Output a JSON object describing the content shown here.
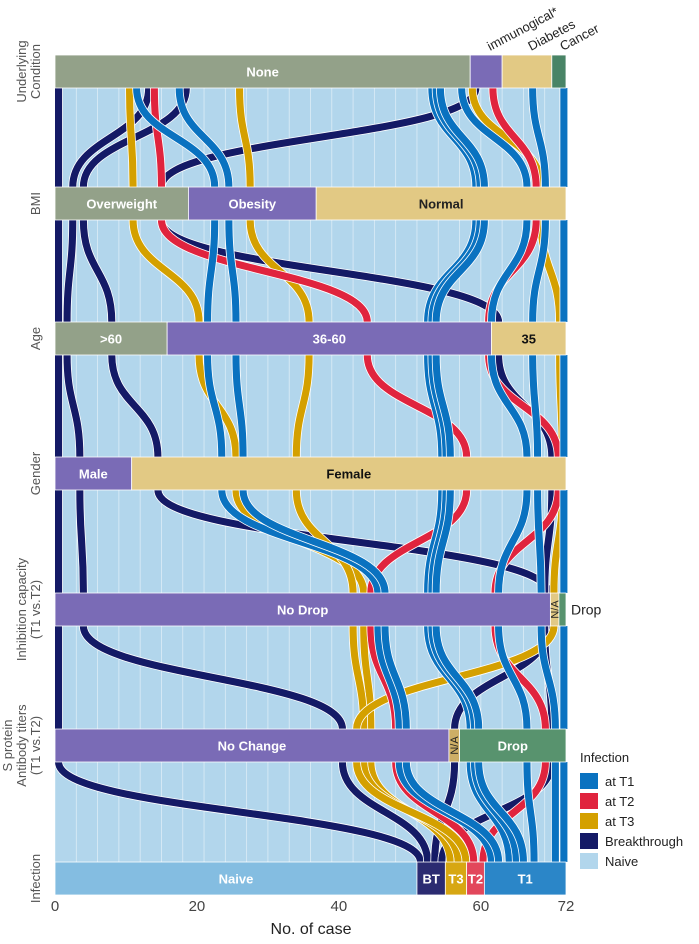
{
  "chart_data": {
    "type": "alluvial",
    "title": "",
    "xlabel": "No. of case",
    "xlim": [
      0,
      72
    ],
    "x_ticks": [
      0,
      20,
      40,
      60,
      72
    ],
    "total_cases": 72,
    "axes": [
      {
        "name": "Underlying Condition",
        "label_lines": [
          "Underlying",
          "Condition"
        ],
        "nodes": [
          {
            "label": "None",
            "start": 0,
            "end": 58.5,
            "color": "#8a9a80",
            "text_color": "#ffffff",
            "label_outside": false
          },
          {
            "label": "immunogical*",
            "start": 58.5,
            "end": 63,
            "color": "#6f5fb0",
            "text_color": "#222222",
            "label_outside": "rotated-top"
          },
          {
            "label": "Diabetes",
            "start": 63,
            "end": 70,
            "color": "#e0c57a",
            "text_color": "#222222",
            "label_outside": "rotated-top"
          },
          {
            "label": "Cancer",
            "start": 70,
            "end": 72,
            "color": "#3a7a5a",
            "text_color": "#222222",
            "label_outside": "rotated-top"
          }
        ]
      },
      {
        "name": "BMI",
        "label_lines": [
          "BMI"
        ],
        "nodes": [
          {
            "label": "Overweight",
            "start": 0,
            "end": 18.8,
            "color": "#8a9a80",
            "text_color": "#ffffff"
          },
          {
            "label": "Obesity",
            "start": 18.8,
            "end": 36.8,
            "color": "#6f5fb0",
            "text_color": "#ffffff"
          },
          {
            "label": "Normal",
            "start": 36.8,
            "end": 72,
            "color": "#e0c57a",
            "text_color": "#222222"
          }
        ]
      },
      {
        "name": "Age",
        "label_lines": [
          "Age"
        ],
        "nodes": [
          {
            "label": ">60",
            "start": 0,
            "end": 15.8,
            "color": "#8a9a80",
            "text_color": "#ffffff"
          },
          {
            "label": "36-60",
            "start": 15.8,
            "end": 61.5,
            "color": "#6f5fb0",
            "text_color": "#ffffff"
          },
          {
            "label": "35",
            "start": 61.5,
            "end": 72,
            "color": "#e0c57a",
            "text_color": "#111111"
          }
        ]
      },
      {
        "name": "Gender",
        "label_lines": [
          "Gender"
        ],
        "nodes": [
          {
            "label": "Male",
            "start": 0,
            "end": 10.8,
            "color": "#6f5fb0",
            "text_color": "#ffffff"
          },
          {
            "label": "Female",
            "start": 10.8,
            "end": 72,
            "color": "#e0c57a",
            "text_color": "#111111"
          }
        ]
      },
      {
        "name": "Inhibition capacity (T1 vs.T2)",
        "label_lines": [
          "Inhibition capacity",
          "(T1 vs.T2)"
        ],
        "nodes": [
          {
            "label": "No Drop",
            "start": 0,
            "end": 69.8,
            "color": "#6f5fb0",
            "text_color": "#ffffff"
          },
          {
            "label": "N/A",
            "start": 69.8,
            "end": 71,
            "color": "#e0c57a",
            "text_color": "#222222",
            "rotated": true
          },
          {
            "label": "Drop",
            "start": 71,
            "end": 72,
            "color": "#4a8a62",
            "text_color": "#222222",
            "label_outside": "right"
          }
        ]
      },
      {
        "name": "S protein Antibody titers (T1 vs.T2)",
        "label_lines": [
          "S protein",
          "Antibody titers",
          "(T1 vs.T2)"
        ],
        "nodes": [
          {
            "label": "No Change",
            "start": 0,
            "end": 55.5,
            "color": "#6f5fb0",
            "text_color": "#ffffff"
          },
          {
            "label": "N/A",
            "start": 55.5,
            "end": 57,
            "color": "#c9a85a",
            "text_color": "#222222",
            "rotated": true
          },
          {
            "label": "Drop",
            "start": 57,
            "end": 72,
            "color": "#4a8a62",
            "text_color": "#ffffff"
          }
        ]
      },
      {
        "name": "Infection",
        "label_lines": [
          "Infection"
        ],
        "nodes": [
          {
            "label": "Naive",
            "start": 0,
            "end": 51,
            "color": "#7ab8df",
            "text_color": "#ffffff"
          },
          {
            "label": "BT",
            "start": 51,
            "end": 55,
            "color": "#1a1a66",
            "text_color": "#ffffff"
          },
          {
            "label": "T3",
            "start": 55,
            "end": 58,
            "color": "#d4a000",
            "text_color": "#ffffff"
          },
          {
            "label": "T2",
            "start": 58,
            "end": 60.5,
            "color": "#e0384e",
            "text_color": "#ffffff"
          },
          {
            "label": "T1",
            "start": 60.5,
            "end": 72,
            "color": "#1a7cc4",
            "text_color": "#ffffff"
          }
        ]
      }
    ],
    "legend": {
      "title": "Infection",
      "placement": "right",
      "items": [
        {
          "label": "at T1",
          "color": "#0a72c0"
        },
        {
          "label": "at T2",
          "color": "#e0243e"
        },
        {
          "label": "at T3",
          "color": "#d4a000"
        },
        {
          "label": "Breakthrough",
          "color": "#141a66"
        },
        {
          "label": "Naive",
          "color": "#b2d6ec"
        }
      ]
    },
    "flows": [
      {
        "group": "Breakthrough",
        "width": 1,
        "path": [
          0,
          0,
          0,
          0,
          0,
          0,
          51
        ]
      },
      {
        "group": "Breakthrough",
        "width": 1,
        "path": [
          12.7,
          2,
          1.2,
          3,
          3.5,
          40,
          52
        ]
      },
      {
        "group": "Breakthrough",
        "width": 1,
        "path": [
          18,
          3.5,
          7.5,
          14,
          69,
          55.8,
          53
        ]
      },
      {
        "group": "Breakthrough",
        "width": 1,
        "path": [
          58.8,
          14.5,
          62,
          69.5,
          68.5,
          69.5,
          54
        ]
      },
      {
        "group": "at T3",
        "width": 1,
        "path": [
          10,
          10.5,
          19.8,
          25,
          43,
          44,
          55.2
        ]
      },
      {
        "group": "at T3",
        "width": 1,
        "path": [
          25.5,
          27,
          35.3,
          33.5,
          41.5,
          43,
          56.3
        ]
      },
      {
        "group": "at T3",
        "width": 1,
        "path": [
          58.3,
          68,
          70.6,
          71,
          69.8,
          42,
          57.4
        ]
      },
      {
        "group": "at T2",
        "width": 1,
        "path": [
          13.5,
          14.5,
          43.5,
          57.5,
          44,
          47.5,
          58.5
        ]
      },
      {
        "group": "at T2",
        "width": 1,
        "path": [
          61.2,
          67.3,
          60.6,
          70.4,
          61.5,
          68.6,
          59.8
        ]
      },
      {
        "group": "at T1",
        "width": 1,
        "path": [
          11,
          22,
          21,
          23,
          45,
          48,
          61
        ]
      },
      {
        "group": "at T1",
        "width": 1,
        "path": [
          17,
          24,
          25,
          26,
          46,
          49,
          62
        ]
      },
      {
        "group": "at T1",
        "width": 1,
        "path": [
          52.6,
          58.8,
          52,
          54,
          52,
          58,
          63.5
        ]
      },
      {
        "group": "at T1",
        "width": 1,
        "path": [
          53.2,
          59.4,
          52.6,
          54.6,
          52.6,
          58.6,
          64.5
        ]
      },
      {
        "group": "at T1",
        "width": 1,
        "path": [
          53.8,
          60,
          53.2,
          55.2,
          53.2,
          59.2,
          65.5
        ]
      },
      {
        "group": "at T1",
        "width": 1,
        "path": [
          56.8,
          66,
          61,
          66,
          62,
          66,
          67
        ]
      },
      {
        "group": "at T1",
        "width": 1,
        "path": [
          66.8,
          68.6,
          66.8,
          67.5,
          68,
          70,
          70
        ]
      },
      {
        "group": "at T1",
        "width": 1,
        "path": [
          71.2,
          71.2,
          71.2,
          71.2,
          71.2,
          71.2,
          71.2
        ]
      }
    ]
  }
}
